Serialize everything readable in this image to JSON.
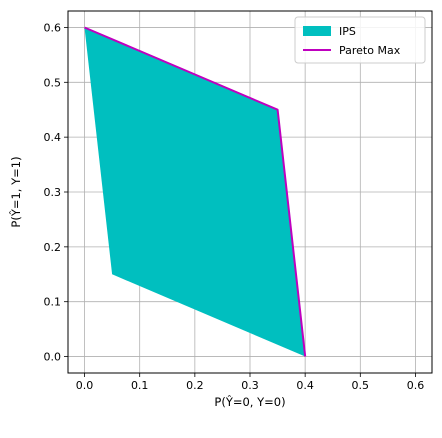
{
  "chart_data": {
    "type": "area",
    "title": "",
    "xlabel": "P(Ŷ=0, Y=0)",
    "ylabel": "P(Ŷ=1, Y=1)",
    "xlim": [
      -0.03,
      0.63
    ],
    "ylim": [
      -0.03,
      0.63
    ],
    "xticks": [
      "0.0",
      "0.1",
      "0.2",
      "0.3",
      "0.4",
      "0.5",
      "0.6"
    ],
    "yticks": [
      "0.0",
      "0.1",
      "0.2",
      "0.3",
      "0.4",
      "0.5",
      "0.6"
    ],
    "grid": true,
    "legend_position": "top-right",
    "series": [
      {
        "name": "IPS",
        "kind": "filled-polygon",
        "color": "#00bfbf",
        "points": [
          [
            0.0,
            0.6
          ],
          [
            0.35,
            0.45
          ],
          [
            0.4,
            0.0
          ],
          [
            0.05,
            0.15
          ]
        ]
      },
      {
        "name": "Pareto Max",
        "kind": "line",
        "color": "#bf00bf",
        "points": [
          [
            0.0,
            0.6
          ],
          [
            0.35,
            0.45
          ],
          [
            0.4,
            0.0
          ]
        ]
      }
    ]
  }
}
